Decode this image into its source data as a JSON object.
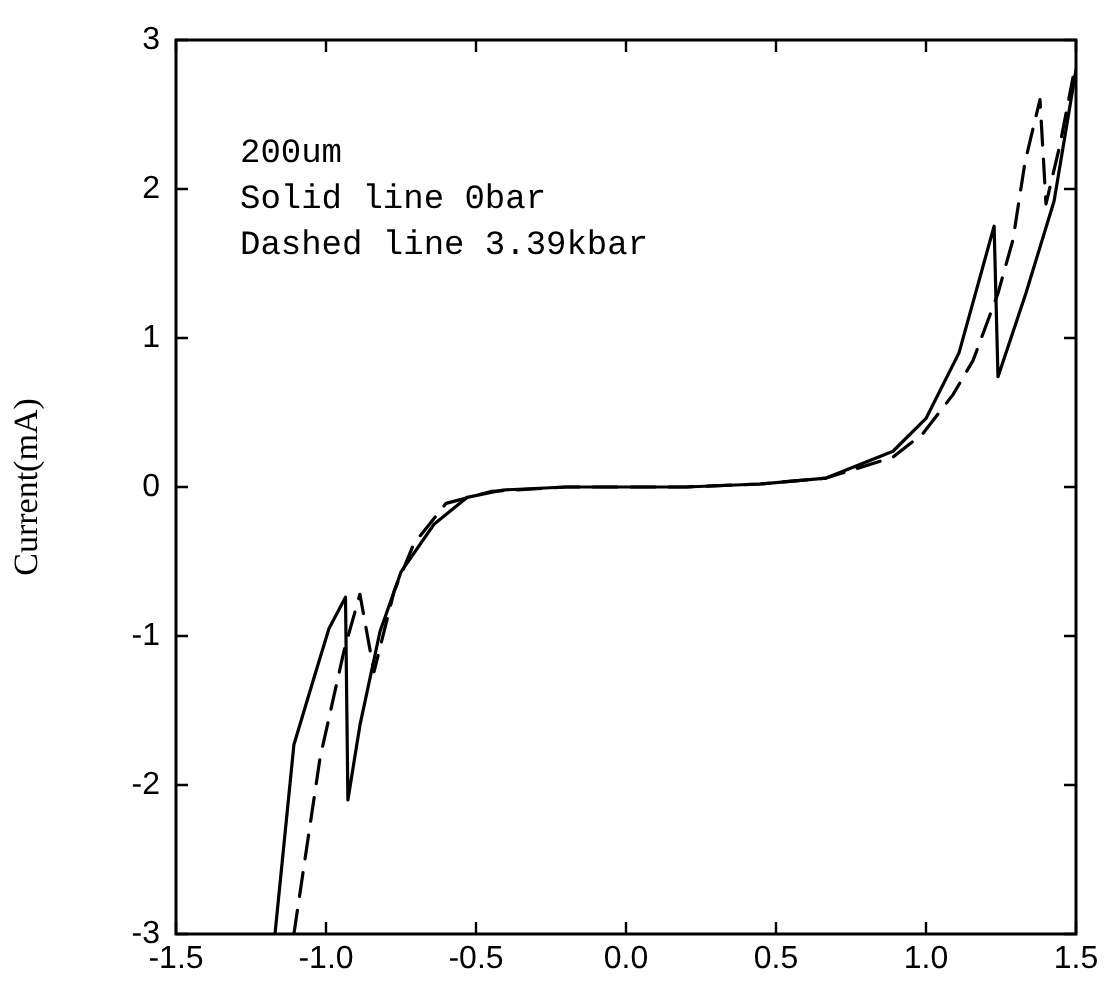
{
  "chart_data": {
    "type": "line",
    "ylabel": "Current(mA)",
    "xlim": [
      -1.5,
      1.5
    ],
    "ylim": [
      -3,
      3
    ],
    "xticks": [
      -1.5,
      {
        "value": -1,
        "label": "-1.0"
      },
      -0.5,
      {
        "value": 0,
        "label": "0.0"
      },
      0.5,
      {
        "value": 1,
        "label": "1.0"
      },
      1.5
    ],
    "yticks": [
      -3,
      -2,
      -1,
      0,
      1,
      2,
      3
    ],
    "grid": false,
    "legend": false,
    "marker": "none",
    "annotations": [
      "200um",
      "Solid line 0bar",
      "Dashed line 3.39kbar"
    ],
    "series": [
      {
        "color": "#000000",
        "line_style": "solid",
        "x": [
          -1.17,
          -1.107,
          -1.04,
          -0.99,
          -0.935,
          -0.927,
          -0.887,
          -0.82,
          -0.75,
          -0.64,
          -0.53,
          -0.41,
          -0.2,
          0.0,
          0.2,
          0.447,
          0.667,
          0.89,
          1.0,
          1.11,
          1.227,
          1.24,
          1.333,
          1.427,
          1.5
        ],
        "values": [
          -3,
          -1.73,
          -1.28,
          -0.95,
          -0.74,
          -2.1,
          -1.6,
          -0.97,
          -0.57,
          -0.25,
          -0.07,
          -0.02,
          0,
          0,
          0,
          0.02,
          0.06,
          0.24,
          0.46,
          0.9,
          1.75,
          0.74,
          1.3,
          1.92,
          2.8
        ]
      },
      {
        "color": "#000000",
        "line_style": "dashed",
        "x": [
          -1.107,
          -1.02,
          -0.94,
          -0.887,
          -0.84,
          -0.773,
          -0.707,
          -0.6,
          -0.45,
          -0.2,
          0.0,
          0.2,
          0.447,
          0.667,
          0.89,
          0.99,
          1.09,
          1.157,
          1.24,
          1.29,
          1.33,
          1.38,
          1.4,
          1.447,
          1.49
        ],
        "values": [
          -3,
          -1.82,
          -1.1,
          -0.72,
          -1.24,
          -0.7,
          -0.38,
          -0.11,
          -0.03,
          0,
          0,
          0,
          0.02,
          0.06,
          0.2,
          0.36,
          0.62,
          0.85,
          1.3,
          1.66,
          2.18,
          2.6,
          1.9,
          2.3,
          2.75
        ]
      }
    ]
  }
}
